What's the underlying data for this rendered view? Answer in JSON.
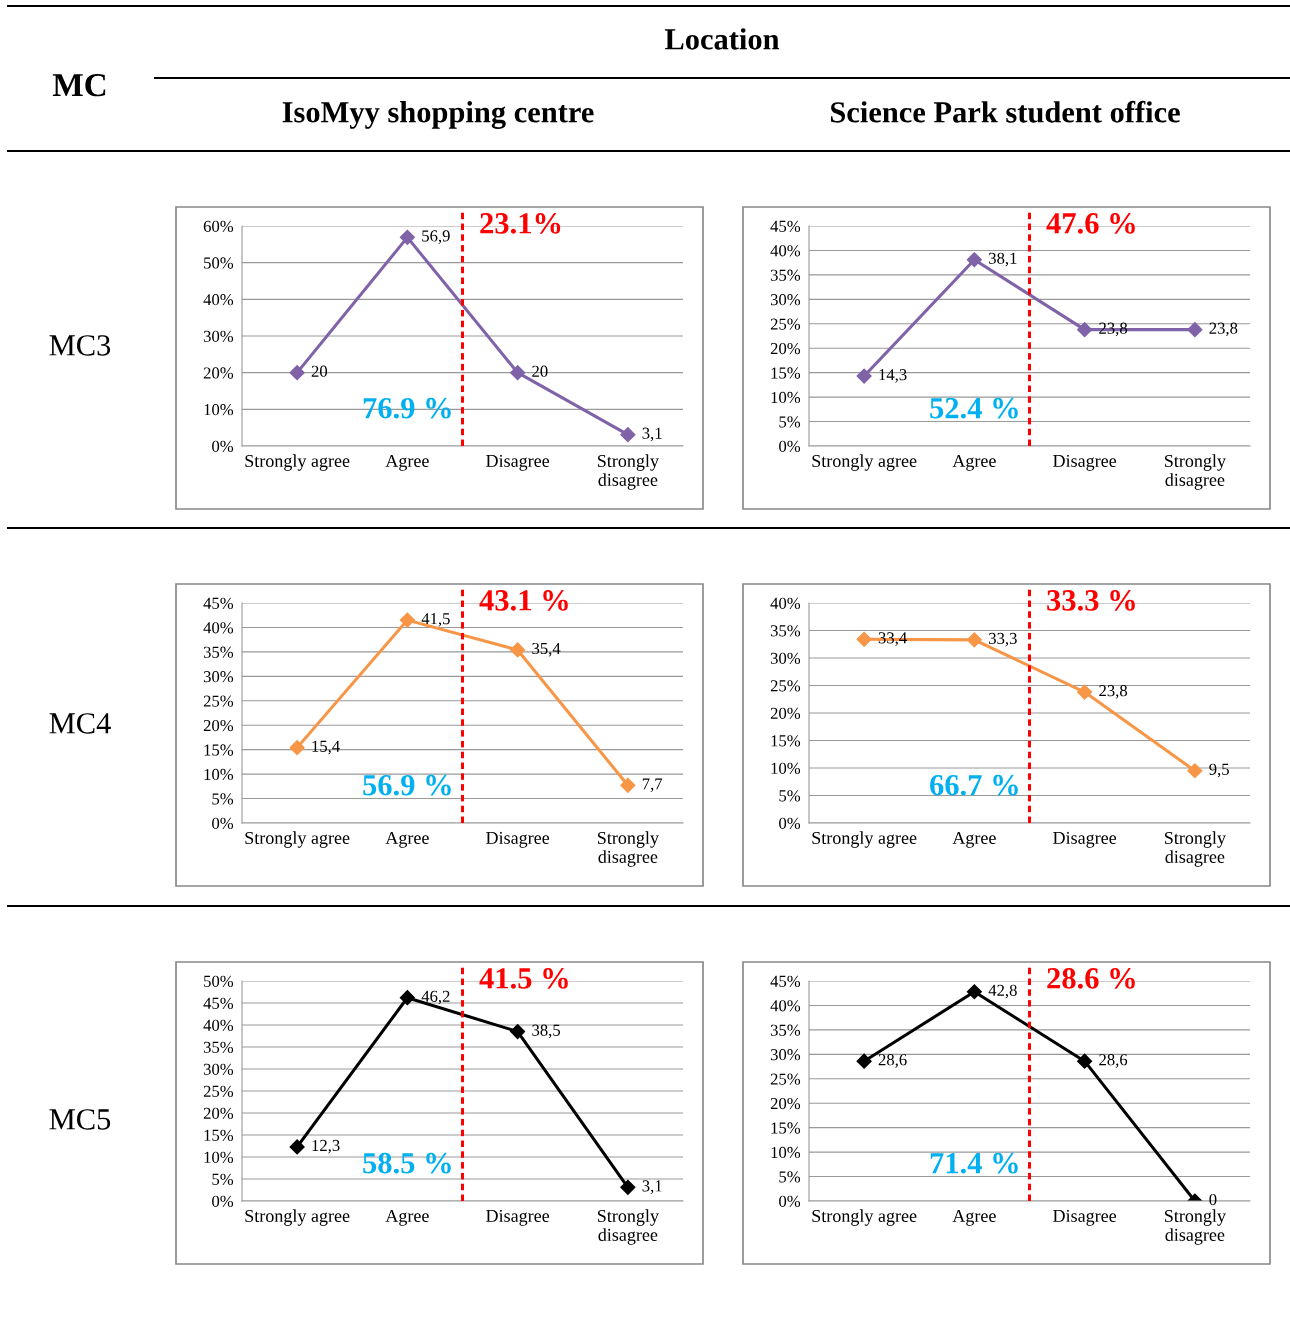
{
  "chart_data": [
    {
      "type": "other",
      "annotations": [
        "MC",
        "Location",
        "IsoMyy shopping centre",
        "Science Park student office",
        "MC3",
        "MC4",
        "MC5"
      ]
    },
    {
      "type": "line",
      "categories": [
        "Strongly agree",
        "Agree",
        "Disagree",
        "Strongly\ndisagree"
      ],
      "values": [
        20,
        56.9,
        20,
        3.1
      ],
      "value_labels": [
        "20",
        "56,9",
        "20",
        "3,1"
      ],
      "color": "#7f62a8",
      "marker": "diamond",
      "grid": "y",
      "ylim": [
        0,
        60
      ],
      "yticks": [
        {
          "value": 0,
          "label": "0%"
        },
        {
          "value": 10,
          "label": "10%"
        },
        {
          "value": 20,
          "label": "20%"
        },
        {
          "value": 30,
          "label": "30%"
        },
        {
          "value": 40,
          "label": "40%"
        },
        {
          "value": 50,
          "label": "50%"
        },
        {
          "value": 60,
          "label": "60%"
        }
      ],
      "annotations": [
        "23.1%",
        "76.9 %"
      ]
    },
    {
      "type": "line",
      "categories": [
        "Strongly agree",
        "Agree",
        "Disagree",
        "Strongly\ndisagree"
      ],
      "values": [
        14.3,
        38.1,
        23.8,
        23.8
      ],
      "value_labels": [
        "14,3",
        "38,1",
        "23,8",
        "23,8"
      ],
      "color": "#7f62a8",
      "marker": "diamond",
      "grid": "y",
      "ylim": [
        0,
        45
      ],
      "yticks": [
        {
          "value": 0,
          "label": "0%"
        },
        {
          "value": 5,
          "label": "5%"
        },
        {
          "value": 10,
          "label": "10%"
        },
        {
          "value": 15,
          "label": "15%"
        },
        {
          "value": 20,
          "label": "20%"
        },
        {
          "value": 25,
          "label": "25%"
        },
        {
          "value": 30,
          "label": "30%"
        },
        {
          "value": 35,
          "label": "35%"
        },
        {
          "value": 40,
          "label": "40%"
        },
        {
          "value": 45,
          "label": "45%"
        }
      ],
      "annotations": [
        "47.6 %",
        "52.4 %"
      ]
    },
    {
      "type": "line",
      "categories": [
        "Strongly agree",
        "Agree",
        "Disagree",
        "Strongly\ndisagree"
      ],
      "values": [
        15.4,
        41.5,
        35.4,
        7.7
      ],
      "value_labels": [
        "15,4",
        "41,5",
        "35,4",
        "7,7"
      ],
      "color": "#f79646",
      "marker": "diamond",
      "grid": "y",
      "ylim": [
        0,
        45
      ],
      "yticks": [
        {
          "value": 0,
          "label": "0%"
        },
        {
          "value": 5,
          "label": "5%"
        },
        {
          "value": 10,
          "label": "10%"
        },
        {
          "value": 15,
          "label": "15%"
        },
        {
          "value": 20,
          "label": "20%"
        },
        {
          "value": 25,
          "label": "25%"
        },
        {
          "value": 30,
          "label": "30%"
        },
        {
          "value": 35,
          "label": "35%"
        },
        {
          "value": 40,
          "label": "40%"
        },
        {
          "value": 45,
          "label": "45%"
        }
      ],
      "annotations": [
        "43.1 %",
        "56.9 %"
      ]
    },
    {
      "type": "line",
      "categories": [
        "Strongly agree",
        "Agree",
        "Disagree",
        "Strongly\ndisagree"
      ],
      "values": [
        33.4,
        33.3,
        23.8,
        9.5
      ],
      "value_labels": [
        "33,4",
        "33,3",
        "23,8",
        "9,5"
      ],
      "color": "#f79646",
      "marker": "diamond",
      "grid": "y",
      "ylim": [
        0,
        40
      ],
      "yticks": [
        {
          "value": 0,
          "label": "0%"
        },
        {
          "value": 5,
          "label": "5%"
        },
        {
          "value": 10,
          "label": "10%"
        },
        {
          "value": 15,
          "label": "15%"
        },
        {
          "value": 20,
          "label": "20%"
        },
        {
          "value": 25,
          "label": "25%"
        },
        {
          "value": 30,
          "label": "30%"
        },
        {
          "value": 35,
          "label": "35%"
        },
        {
          "value": 40,
          "label": "40%"
        }
      ],
      "annotations": [
        "33.3 %",
        "66.7 %"
      ]
    },
    {
      "type": "line",
      "categories": [
        "Strongly agree",
        "Agree",
        "Disagree",
        "Strongly\ndisagree"
      ],
      "values": [
        12.3,
        46.2,
        38.5,
        3.1
      ],
      "value_labels": [
        "12,3",
        "46,2",
        "38,5",
        "3,1"
      ],
      "color": "#000000",
      "marker": "diamond",
      "grid": "y",
      "ylim": [
        0,
        50
      ],
      "yticks": [
        {
          "value": 0,
          "label": "0%"
        },
        {
          "value": 5,
          "label": "5%"
        },
        {
          "value": 10,
          "label": "10%"
        },
        {
          "value": 15,
          "label": "15%"
        },
        {
          "value": 20,
          "label": "20%"
        },
        {
          "value": 25,
          "label": "25%"
        },
        {
          "value": 30,
          "label": "30%"
        },
        {
          "value": 35,
          "label": "35%"
        },
        {
          "value": 40,
          "label": "40%"
        },
        {
          "value": 45,
          "label": "45%"
        },
        {
          "value": 50,
          "label": "50%"
        }
      ],
      "annotations": [
        "41.5 %",
        "58.5 %"
      ]
    },
    {
      "type": "line",
      "categories": [
        "Strongly agree",
        "Agree",
        "Disagree",
        "Strongly\ndisagree"
      ],
      "values": [
        28.6,
        42.8,
        28.6,
        0
      ],
      "value_labels": [
        "28,6",
        "42,8",
        "28,6",
        "0"
      ],
      "color": "#000000",
      "marker": "diamond",
      "grid": "y",
      "ylim": [
        0,
        45
      ],
      "yticks": [
        {
          "value": 0,
          "label": "0%"
        },
        {
          "value": 5,
          "label": "5%"
        },
        {
          "value": 10,
          "label": "10%"
        },
        {
          "value": 15,
          "label": "15%"
        },
        {
          "value": 20,
          "label": "20%"
        },
        {
          "value": 25,
          "label": "25%"
        },
        {
          "value": 30,
          "label": "30%"
        },
        {
          "value": 35,
          "label": "35%"
        },
        {
          "value": 40,
          "label": "40%"
        },
        {
          "value": 45,
          "label": "45%"
        }
      ],
      "annotations": [
        "28.6 %",
        "71.4 %"
      ]
    }
  ]
}
